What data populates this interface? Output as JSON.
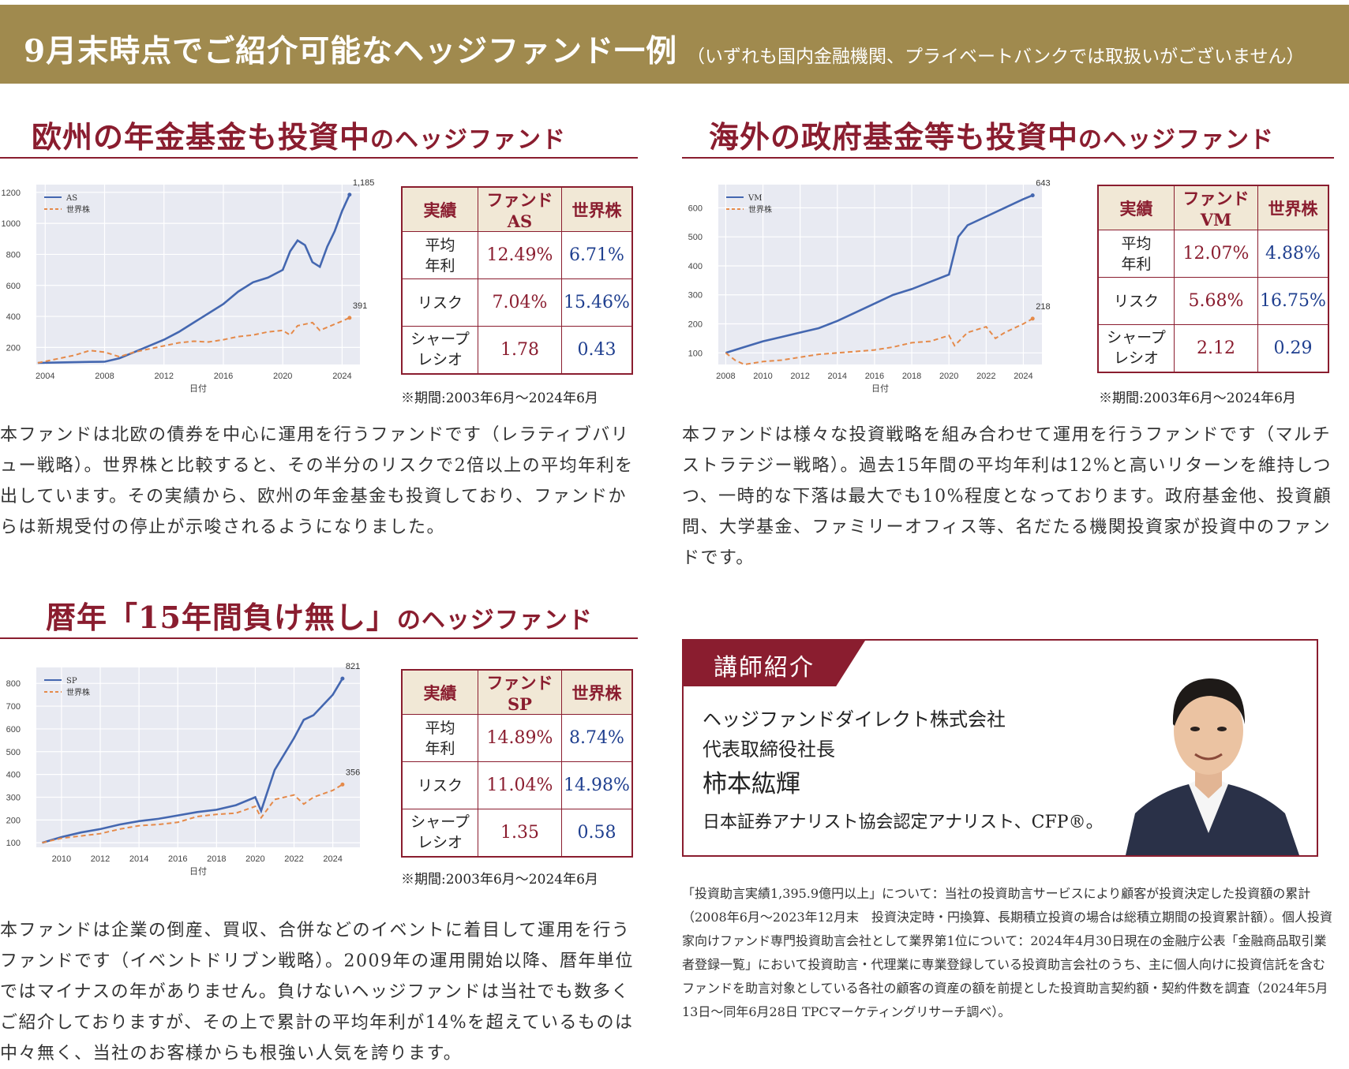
{
  "header": {
    "title": "9月末時点でご紹介可能なヘッジファンド一例",
    "note": "（いずれも国内金融機関、プライベートバンクでは取扱いがございません）"
  },
  "funds": [
    {
      "title_main": "欧州の年金基金も投資中",
      "title_suffix": "のヘッジファンド",
      "table": {
        "headers": [
          "実績",
          "ファンドAS",
          "世界株"
        ],
        "rows": [
          {
            "label": "平均\n年利",
            "fund": "12.49%",
            "world": "6.71%"
          },
          {
            "label": "リスク",
            "fund": "7.04%",
            "world": "15.46%"
          },
          {
            "label": "シャープ\nレシオ",
            "fund": "1.78",
            "world": "0.43"
          }
        ]
      },
      "period": "※期間:2003年6月～2024年6月",
      "description": "本ファンドは北欧の債券を中心に運用を行うファンドです（レラティブバリュー戦略）。世界株と比較すると、その半分のリスクで2倍以上の平均年利を出しています。その実績から、欧州の年金基金も投資しており、ファンドからは新規受付の停止が示唆されるようになりました。"
    },
    {
      "title_main": "海外の政府基金等も投資中",
      "title_suffix": "のヘッジファンド",
      "table": {
        "headers": [
          "実績",
          "ファンドVM",
          "世界株"
        ],
        "rows": [
          {
            "label": "平均\n年利",
            "fund": "12.07%",
            "world": "4.88%"
          },
          {
            "label": "リスク",
            "fund": "5.68%",
            "world": "16.75%"
          },
          {
            "label": "シャープ\nレシオ",
            "fund": "2.12",
            "world": "0.29"
          }
        ]
      },
      "period": "※期間:2003年6月～2024年6月",
      "description": "本ファンドは様々な投資戦略を組み合わせて運用を行うファンドです（マルチストラテジー戦略）。過去15年間の平均年利は12%と高いリターンを維持しつつ、一時的な下落は最大でも10%程度となっております。政府基金他、投資顧問、大学基金、ファミリーオフィス等、名だたる機関投資家が投資中のファンドです。"
    },
    {
      "title_main": "暦年「15年間負け無し」",
      "title_suffix": "のヘッジファンド",
      "table": {
        "headers": [
          "実績",
          "ファンドSP",
          "世界株"
        ],
        "rows": [
          {
            "label": "平均\n年利",
            "fund": "14.89%",
            "world": "8.74%"
          },
          {
            "label": "リスク",
            "fund": "11.04%",
            "world": "14.98%"
          },
          {
            "label": "シャープ\nレシオ",
            "fund": "1.35",
            "world": "0.58"
          }
        ]
      },
      "period": "※期間:2003年6月～2024年6月",
      "description": "本ファンドは企業の倒産、買収、合併などのイベントに着目して運用を行うファンドです（イベントドリブン戦略）。2009年の運用開始以降、暦年単位ではマイナスの年がありません。負けないヘッジファンドは当社でも数多くご紹介しておりますが、その上で累計の平均年利が14%を超えているものは中々無く、当社のお客様からも根強い人気を誇ります。"
    }
  ],
  "chart_data": [
    {
      "type": "line",
      "xlabel": "日付",
      "xlim": [
        2003.4,
        2025.2
      ],
      "ylim": [
        90,
        1250
      ],
      "xticks": [
        2004,
        2008,
        2012,
        2016,
        2020,
        2024
      ],
      "yticks": [
        200,
        400,
        600,
        800,
        1000,
        1200
      ],
      "grid": true,
      "legend": "top-left",
      "end_labels": [
        "1,185",
        "391"
      ],
      "series": [
        {
          "name": "AS",
          "color": "#4467b0",
          "style": "solid",
          "x": [
            2003.5,
            2005,
            2006,
            2007,
            2008,
            2009,
            2010,
            2011,
            2012,
            2013,
            2014,
            2015,
            2016,
            2017,
            2018,
            2019,
            2020,
            2020.5,
            2021,
            2021.5,
            2022,
            2022.5,
            2023,
            2023.5,
            2024,
            2024.5
          ],
          "y": [
            100,
            103,
            105,
            107,
            108,
            130,
            170,
            210,
            250,
            300,
            360,
            420,
            480,
            560,
            620,
            650,
            700,
            820,
            890,
            860,
            750,
            720,
            850,
            950,
            1080,
            1185
          ]
        },
        {
          "name": "世界株",
          "color": "#e58a4a",
          "style": "dashed",
          "x": [
            2003.5,
            2005,
            2006,
            2007,
            2008,
            2009,
            2010,
            2011,
            2012,
            2013,
            2014,
            2015,
            2016,
            2017,
            2018,
            2019,
            2020,
            2020.5,
            2021,
            2022,
            2022.5,
            2023,
            2024,
            2024.5
          ],
          "y": [
            100,
            130,
            150,
            180,
            170,
            140,
            170,
            190,
            210,
            230,
            240,
            235,
            250,
            270,
            280,
            300,
            310,
            280,
            340,
            360,
            310,
            330,
            370,
            391
          ]
        }
      ]
    },
    {
      "type": "line",
      "xlabel": "日付",
      "xlim": [
        2007.6,
        2025.0
      ],
      "ylim": [
        60,
        680
      ],
      "xticks": [
        2008,
        2010,
        2012,
        2014,
        2016,
        2018,
        2020,
        2022,
        2024
      ],
      "yticks": [
        100,
        200,
        300,
        400,
        500,
        600
      ],
      "grid": true,
      "legend": "top-left",
      "end_labels": [
        "643",
        "218"
      ],
      "series": [
        {
          "name": "VM",
          "color": "#4467b0",
          "style": "solid",
          "x": [
            2008,
            2009,
            2010,
            2011,
            2012,
            2013,
            2014,
            2015,
            2016,
            2017,
            2018,
            2019,
            2020,
            2020.5,
            2021,
            2022,
            2023,
            2024,
            2024.5
          ],
          "y": [
            100,
            120,
            140,
            155,
            170,
            185,
            210,
            240,
            270,
            300,
            320,
            345,
            370,
            500,
            540,
            570,
            600,
            630,
            643
          ]
        },
        {
          "name": "世界株",
          "color": "#e58a4a",
          "style": "dashed",
          "x": [
            2008,
            2008.5,
            2009,
            2010,
            2011,
            2012,
            2013,
            2014,
            2015,
            2016,
            2017,
            2018,
            2019,
            2020,
            2020.3,
            2021,
            2022,
            2022.5,
            2023,
            2024,
            2024.5
          ],
          "y": [
            100,
            75,
            60,
            70,
            75,
            85,
            95,
            100,
            105,
            110,
            120,
            135,
            140,
            160,
            125,
            170,
            190,
            150,
            170,
            200,
            218
          ]
        }
      ]
    },
    {
      "type": "line",
      "xlabel": "日付",
      "xlim": [
        2008.7,
        2025.4
      ],
      "ylim": [
        80,
        870
      ],
      "xticks": [
        2010,
        2012,
        2014,
        2016,
        2018,
        2020,
        2022,
        2024
      ],
      "yticks": [
        100,
        200,
        300,
        400,
        500,
        600,
        700,
        800
      ],
      "grid": true,
      "legend": "top-left",
      "end_labels": [
        "821",
        "356"
      ],
      "series": [
        {
          "name": "SP",
          "color": "#4467b0",
          "style": "solid",
          "x": [
            2009,
            2010,
            2011,
            2012,
            2013,
            2014,
            2015,
            2016,
            2017,
            2018,
            2019,
            2020,
            2020.3,
            2021,
            2022,
            2022.5,
            2023,
            2024,
            2024.5
          ],
          "y": [
            100,
            125,
            145,
            160,
            180,
            195,
            205,
            220,
            235,
            245,
            265,
            300,
            240,
            420,
            560,
            640,
            660,
            750,
            821
          ]
        },
        {
          "name": "世界株",
          "color": "#e58a4a",
          "style": "dashed",
          "x": [
            2009,
            2010,
            2011,
            2012,
            2013,
            2014,
            2015,
            2016,
            2017,
            2018,
            2019,
            2020,
            2020.3,
            2021,
            2022,
            2022.5,
            2023,
            2024,
            2024.5
          ],
          "y": [
            100,
            120,
            130,
            140,
            160,
            175,
            180,
            190,
            215,
            225,
            230,
            260,
            210,
            290,
            310,
            270,
            300,
            330,
            356
          ]
        }
      ]
    }
  ],
  "instructor": {
    "heading": "講師紹介",
    "company": "ヘッジファンドダイレクト株式会社",
    "position": "代表取締役社長",
    "name": "柿本紘輝",
    "qualification": "日本証券アナリスト協会認定アナリスト、CFP®。"
  },
  "footnote": "「投資助言実績1,395.9億円以上」について：当社の投資助言サービスにより顧客が投資決定した投資額の累計（2008年6月～2023年12月末　投資決定時・円換算、長期積立投資の場合は総積立期間の投資累計額）。個人投資家向けファンド専門投資助言会社として業界第1位について：2024年4月30日現在の金融庁公表「金融商品取引業者登録一覧」において投資助言・代理業に専業登録している投資助言会社のうち、主に個人向けに投資信託を含むファンドを助言対象としている各社の顧客の資産の額を前提とした投資助言契約額・契約件数を調査（2024年5月13日～同年6月28日 TPCマーケティングリサーチ調べ）。",
  "colors": {
    "banner": "#a08a4e",
    "accent": "#8a1d2f",
    "fund_line": "#4467b0",
    "world_line": "#e58a4a",
    "plot_bg": "#e8eaf2"
  }
}
